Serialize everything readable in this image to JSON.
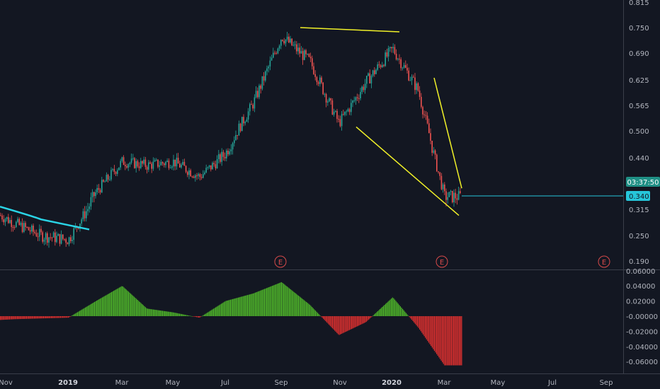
{
  "colors": {
    "background": "#131722",
    "up": "#26a69a",
    "down": "#ef5350",
    "hist_up": "#4caf2a",
    "hist_down": "#d32f2f",
    "ma_line": "#2ad4e6",
    "trendline": "#f1f128",
    "price_line": "#26c6da",
    "text": "#b2b5be",
    "earnings": "#d84a4a"
  },
  "price_axis": {
    "tick_labels": [
      "0.815",
      "0.750",
      "0.690",
      "0.625",
      "0.565",
      "0.500",
      "0.440",
      "0.315",
      "0.250",
      "0.190"
    ],
    "current_price": "0.340",
    "countdown": "03:37:50"
  },
  "oscillator_axis": {
    "tick_labels": [
      "0.06000",
      "0.04000",
      "0.02000",
      "-0.00000",
      "-0.02000",
      "-0.04000",
      "-0.06000"
    ]
  },
  "time_axis": {
    "labels": [
      "Nov",
      "2019",
      "Mar",
      "May",
      "Jul",
      "Sep",
      "Nov",
      "2020",
      "Mar",
      "May",
      "Jul",
      "Sep"
    ]
  },
  "earnings_marker_label": "E",
  "chart_data": [
    {
      "type": "candlestick",
      "x": [
        "2018-10",
        "2018-11",
        "2018-12",
        "2019-01",
        "2019-02",
        "2019-03",
        "2019-04",
        "2019-05",
        "2019-06",
        "2019-07",
        "2019-08",
        "2019-09",
        "2019-10",
        "2019-11",
        "2019-12",
        "2020-01",
        "2020-02",
        "2020-03"
      ],
      "close": [
        0.3,
        0.28,
        0.25,
        0.24,
        0.35,
        0.43,
        0.42,
        0.43,
        0.39,
        0.45,
        0.57,
        0.73,
        0.67,
        0.52,
        0.62,
        0.7,
        0.6,
        0.34
      ],
      "ylim": [
        0.19,
        0.815
      ],
      "moving_average": {
        "x": [
          "2018-10",
          "2018-12",
          "2019-01"
        ],
        "values": [
          0.32,
          0.29,
          0.265
        ]
      },
      "trendlines": [
        {
          "x": [
            "2019-09",
            "2020-01"
          ],
          "y": [
            0.75,
            0.74
          ]
        },
        {
          "x": [
            "2019-11",
            "2020-03"
          ],
          "y": [
            0.51,
            0.3
          ]
        },
        {
          "x": [
            "2020-02",
            "2020-03"
          ],
          "y": [
            0.63,
            0.36
          ]
        }
      ],
      "current_price": 0.34,
      "earnings_markers": [
        "2019-09",
        "2020-03",
        "2020-09"
      ]
    },
    {
      "type": "bar",
      "x": [
        "2018-10",
        "2018-11",
        "2018-12",
        "2019-01",
        "2019-02",
        "2019-03",
        "2019-04",
        "2019-05",
        "2019-06",
        "2019-07",
        "2019-08",
        "2019-09",
        "2019-10",
        "2019-11",
        "2019-12",
        "2020-01",
        "2020-02",
        "2020-03"
      ],
      "values": [
        -0.005,
        -0.004,
        -0.003,
        -0.002,
        0.02,
        0.04,
        0.01,
        0.005,
        -0.002,
        0.02,
        0.03,
        0.045,
        0.015,
        -0.025,
        -0.008,
        0.025,
        -0.015,
        -0.065
      ],
      "ylim": [
        -0.07,
        0.06
      ]
    }
  ]
}
